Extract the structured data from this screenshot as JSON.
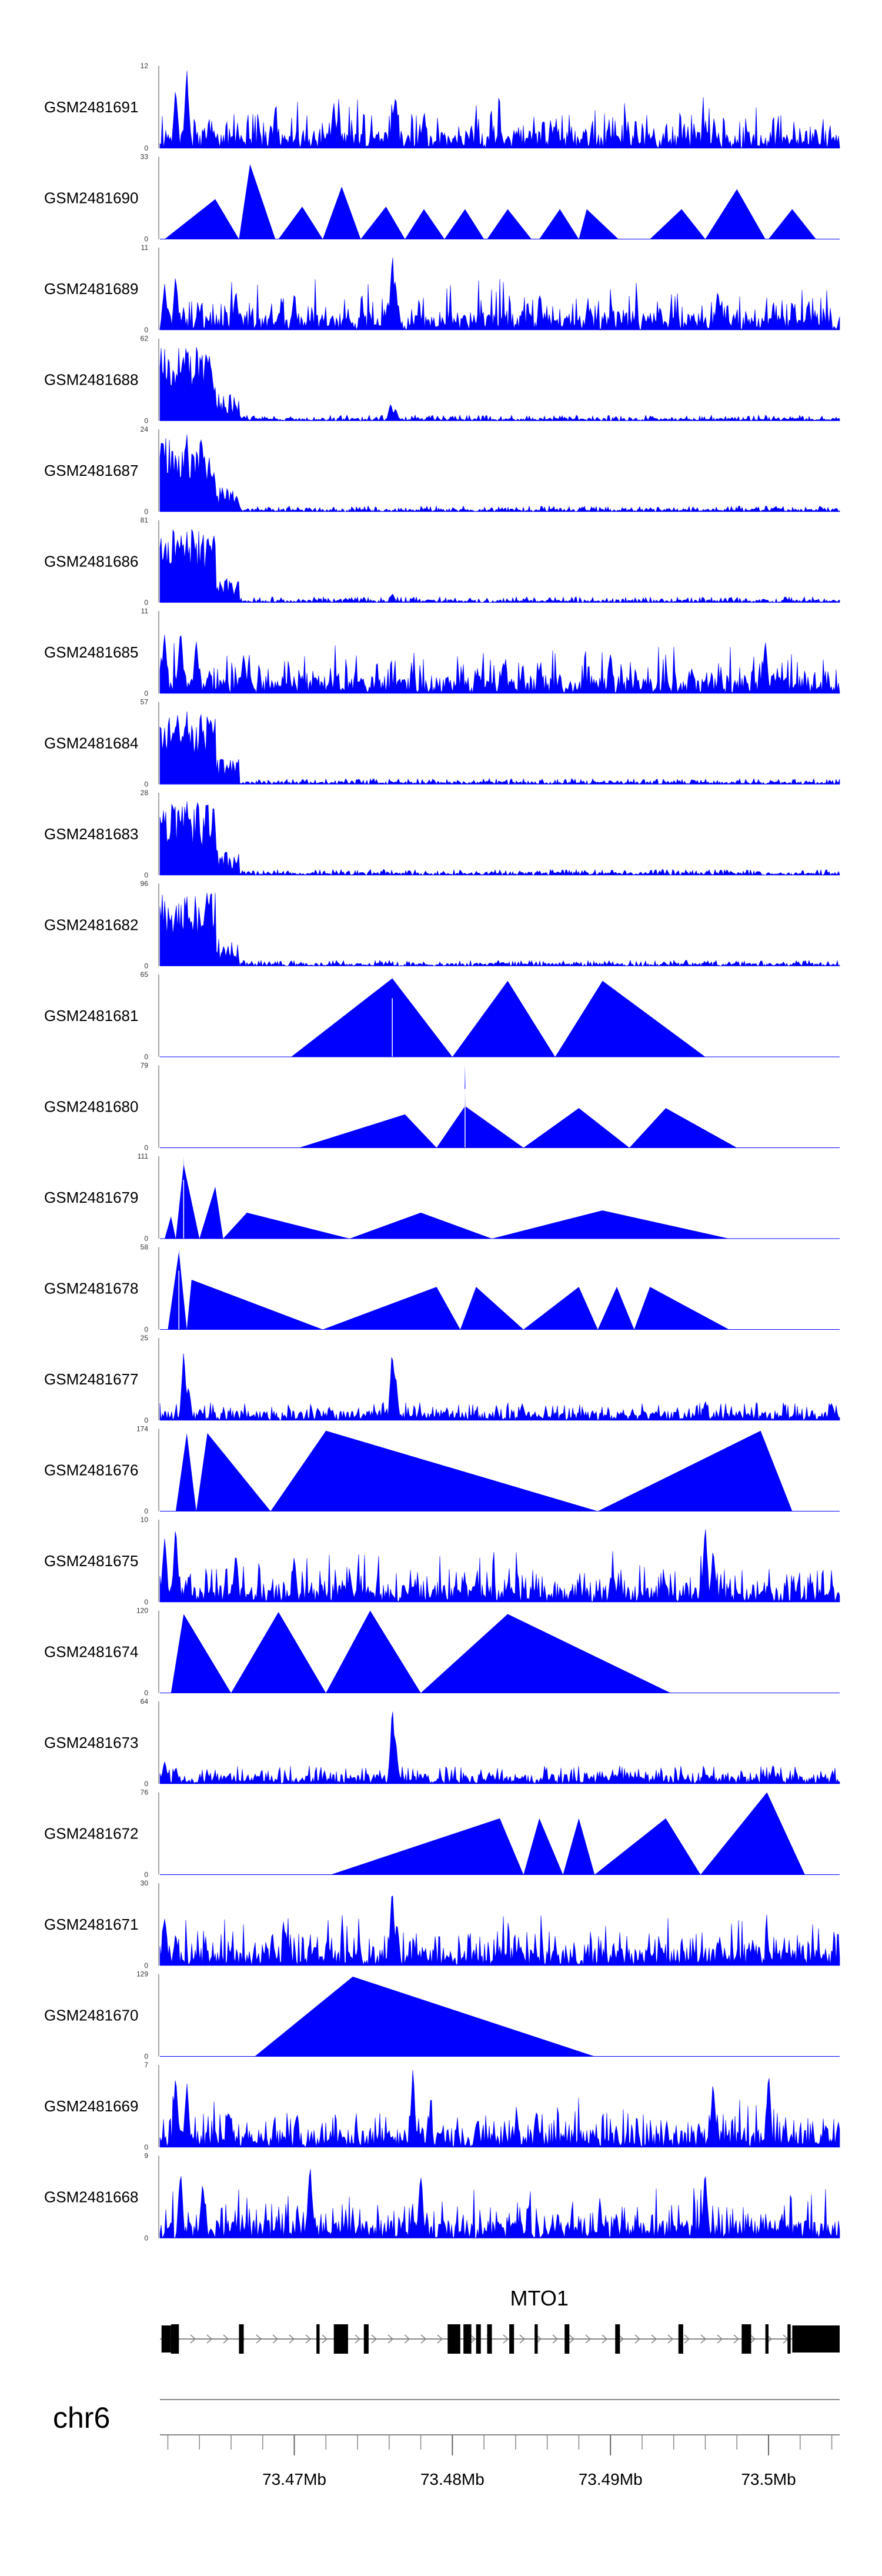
{
  "chart_data": {
    "type": "area",
    "chromosome": "chr6",
    "x_range": [
      73.4615,
      73.5045
    ],
    "x_tick_labels": [
      "73.47Mb",
      "73.48Mb",
      "73.49Mb",
      "73.5Mb"
    ],
    "x_tick_values": [
      73.47,
      73.48,
      73.49,
      73.5
    ],
    "minor_tick_step_kb": 2,
    "fill_color": "#0000ff",
    "gene": {
      "name": "MTO1",
      "strand": "+",
      "start": 73.4615,
      "end": 73.5045,
      "exons": [
        {
          "start": 73.4616,
          "end": 73.4622,
          "height": "utr"
        },
        {
          "start": 73.4622,
          "end": 73.4627,
          "height": "full"
        },
        {
          "start": 73.4665,
          "end": 73.4668,
          "height": "full"
        },
        {
          "start": 73.4714,
          "end": 73.4716,
          "height": "full"
        },
        {
          "start": 73.4725,
          "end": 73.4734,
          "height": "full"
        },
        {
          "start": 73.4744,
          "end": 73.4747,
          "height": "full"
        },
        {
          "start": 73.4797,
          "end": 73.4805,
          "height": "full"
        },
        {
          "start": 73.4807,
          "end": 73.4812,
          "height": "full"
        },
        {
          "start": 73.4815,
          "end": 73.4818,
          "height": "full"
        },
        {
          "start": 73.4822,
          "end": 73.4825,
          "height": "full"
        },
        {
          "start": 73.4836,
          "end": 73.4839,
          "height": "full"
        },
        {
          "start": 73.4852,
          "end": 73.4854,
          "height": "full"
        },
        {
          "start": 73.4871,
          "end": 73.4874,
          "height": "full"
        },
        {
          "start": 73.4903,
          "end": 73.4906,
          "height": "full"
        },
        {
          "start": 73.4943,
          "end": 73.4946,
          "height": "full"
        },
        {
          "start": 73.4983,
          "end": 73.4989,
          "height": "full"
        },
        {
          "start": 73.4998,
          "end": 73.5,
          "height": "full"
        },
        {
          "start": 73.5012,
          "end": 73.5014,
          "height": "full"
        },
        {
          "start": 73.5015,
          "end": 73.5045,
          "height": "utr"
        }
      ]
    },
    "tracks": [
      {
        "name": "GSM2481691",
        "ymax": 12,
        "kind": "dense",
        "seed": 11,
        "peaks": [
          [
            73.4625,
            10
          ],
          [
            73.4632,
            12
          ],
          [
            73.4725,
            7
          ],
          [
            73.4764,
            9
          ],
          [
            73.4782,
            6
          ]
        ]
      },
      {
        "name": "GSM2481690",
        "ymax": 33,
        "kind": "triangles",
        "seed": 12,
        "triangles": [
          [
            73.4618,
            73.465,
            73.4665,
            16
          ],
          [
            73.4665,
            73.4672,
            73.4688,
            30
          ],
          [
            73.469,
            73.4705,
            73.4718,
            13
          ],
          [
            73.4718,
            73.473,
            73.4742,
            21
          ],
          [
            73.4742,
            73.4758,
            73.477,
            13
          ],
          [
            73.477,
            73.4782,
            73.4795,
            12
          ],
          [
            73.4795,
            73.4808,
            73.482,
            12
          ],
          [
            73.4822,
            73.4835,
            73.485,
            12
          ],
          [
            73.4855,
            73.4868,
            73.488,
            12
          ],
          [
            73.488,
            73.4885,
            73.4905,
            12
          ],
          [
            73.4925,
            73.4945,
            73.496,
            12
          ],
          [
            73.496,
            73.498,
            73.4998,
            20
          ],
          [
            73.5,
            73.5015,
            73.503,
            12
          ]
        ]
      },
      {
        "name": "GSM2481689",
        "ymax": 11,
        "kind": "dense",
        "seed": 13,
        "peaks": [
          [
            73.4618,
            7
          ],
          [
            73.4625,
            8
          ],
          [
            73.4663,
            6
          ],
          [
            73.47,
            5
          ],
          [
            73.4762,
            11
          ],
          [
            73.4764,
            7
          ],
          [
            73.4968,
            6
          ]
        ]
      },
      {
        "name": "GSM2481688",
        "ymax": 62,
        "kind": "early",
        "seed": 14,
        "peaks": [
          [
            73.4618,
            45
          ],
          [
            73.4627,
            50
          ],
          [
            73.4632,
            58
          ],
          [
            73.464,
            30
          ],
          [
            73.4761,
            14
          ],
          [
            73.4764,
            10
          ]
        ]
      },
      {
        "name": "GSM2481687",
        "ymax": 24,
        "kind": "early",
        "seed": 15,
        "peaks": [
          [
            73.4618,
            18
          ],
          [
            73.4625,
            20
          ],
          [
            73.4632,
            24
          ],
          [
            73.464,
            12
          ],
          [
            73.4645,
            8
          ]
        ]
      },
      {
        "name": "GSM2481686",
        "ymax": 81,
        "kind": "early",
        "seed": 16,
        "peaks": [
          [
            73.4618,
            60
          ],
          [
            73.4625,
            50
          ],
          [
            73.4632,
            75
          ],
          [
            73.464,
            40
          ],
          [
            73.4762,
            10
          ]
        ]
      },
      {
        "name": "GSM2481685",
        "ymax": 11,
        "kind": "dense",
        "seed": 17,
        "peaks": [
          [
            73.4618,
            9
          ],
          [
            73.4628,
            10
          ],
          [
            73.4638,
            8
          ],
          [
            73.4668,
            6
          ],
          [
            73.49,
            6
          ],
          [
            73.4998,
            8
          ]
        ]
      },
      {
        "name": "GSM2481684",
        "ymax": 57,
        "kind": "early",
        "seed": 18,
        "peaks": [
          [
            73.4618,
            40
          ],
          [
            73.4625,
            48
          ],
          [
            73.4632,
            55
          ],
          [
            73.464,
            30
          ]
        ]
      },
      {
        "name": "GSM2481683",
        "ymax": 28,
        "kind": "early",
        "seed": 19,
        "peaks": [
          [
            73.4618,
            18
          ],
          [
            73.4627,
            25
          ],
          [
            73.4632,
            27
          ],
          [
            73.464,
            14
          ]
        ]
      },
      {
        "name": "GSM2481682",
        "ymax": 96,
        "kind": "early",
        "seed": 20,
        "peaks": [
          [
            73.4618,
            70
          ],
          [
            73.4625,
            80
          ],
          [
            73.4632,
            90
          ],
          [
            73.464,
            45
          ]
        ]
      },
      {
        "name": "GSM2481681",
        "ymax": 65,
        "kind": "triangles",
        "seed": 21,
        "triangles": [
          [
            73.4698,
            73.4762,
            73.48,
            62
          ],
          [
            73.48,
            73.4835,
            73.4865,
            60
          ],
          [
            73.4865,
            73.4895,
            73.496,
            60
          ]
        ],
        "spikes": [
          [
            73.4762,
            65
          ]
        ]
      },
      {
        "name": "GSM2481680",
        "ymax": 79,
        "kind": "triangles",
        "seed": 22,
        "triangles": [
          [
            73.4703,
            73.477,
            73.479,
            32
          ],
          [
            73.479,
            73.4808,
            73.4845,
            40
          ],
          [
            73.4845,
            73.488,
            73.4912,
            38
          ],
          [
            73.4912,
            73.4935,
            73.498,
            38
          ]
        ],
        "spikes": [
          [
            73.4808,
            79
          ]
        ]
      },
      {
        "name": "GSM2481679",
        "ymax": 111,
        "kind": "triangles",
        "seed": 23,
        "triangles": [
          [
            73.4618,
            73.4622,
            73.4625,
            30
          ],
          [
            73.4625,
            73.463,
            73.464,
            100
          ],
          [
            73.464,
            73.465,
            73.4655,
            70
          ],
          [
            73.4655,
            73.467,
            73.4735,
            35
          ],
          [
            73.4735,
            73.478,
            73.4825,
            35
          ],
          [
            73.4825,
            73.4895,
            73.4975,
            38
          ]
        ],
        "spikes": [
          [
            73.463,
            111
          ]
        ]
      },
      {
        "name": "GSM2481678",
        "ymax": 58,
        "kind": "triangles",
        "seed": 24,
        "triangles": [
          [
            73.462,
            73.4627,
            73.4632,
            55
          ],
          [
            73.4632,
            73.4635,
            73.4718,
            35
          ],
          [
            73.4718,
            73.479,
            73.4805,
            30
          ],
          [
            73.4805,
            73.4815,
            73.4845,
            30
          ],
          [
            73.4845,
            73.488,
            73.4892,
            30
          ],
          [
            73.4892,
            73.4904,
            73.4915,
            30
          ],
          [
            73.4915,
            73.4925,
            73.4975,
            30
          ]
        ],
        "spikes": [
          [
            73.4627,
            58
          ]
        ]
      },
      {
        "name": "GSM2481677",
        "ymax": 25,
        "kind": "sparse",
        "seed": 25,
        "peaks": [
          [
            73.463,
            22
          ],
          [
            73.4633,
            12
          ],
          [
            73.4762,
            24
          ],
          [
            73.4764,
            16
          ],
          [
            73.496,
            7
          ],
          [
            73.504,
            6
          ]
        ]
      },
      {
        "name": "GSM2481676",
        "ymax": 174,
        "kind": "triangles",
        "seed": 26,
        "triangles": [
          [
            73.4625,
            73.4632,
            73.4638,
            165
          ],
          [
            73.4638,
            73.4645,
            73.4685,
            165
          ],
          [
            73.4685,
            73.472,
            73.4892,
            170
          ],
          [
            73.4892,
            73.4995,
            73.5015,
            170
          ]
        ]
      },
      {
        "name": "GSM2481675",
        "ymax": 10,
        "kind": "dense",
        "seed": 27,
        "peaks": [
          [
            73.4618,
            9
          ],
          [
            73.4625,
            10
          ],
          [
            73.4663,
            7
          ],
          [
            73.47,
            6
          ],
          [
            73.496,
            10
          ],
          [
            73.4965,
            7
          ]
        ]
      },
      {
        "name": "GSM2481674",
        "ymax": 120,
        "kind": "triangles",
        "seed": 28,
        "triangles": [
          [
            73.4622,
            73.463,
            73.466,
            115
          ],
          [
            73.466,
            73.469,
            73.472,
            118
          ],
          [
            73.472,
            73.4748,
            73.478,
            120
          ],
          [
            73.478,
            73.4835,
            73.4938,
            115
          ]
        ]
      },
      {
        "name": "GSM2481673",
        "ymax": 64,
        "kind": "sparse",
        "seed": 29,
        "peaks": [
          [
            73.4618,
            20
          ],
          [
            73.4625,
            15
          ],
          [
            73.4762,
            64
          ],
          [
            73.4764,
            40
          ]
        ]
      },
      {
        "name": "GSM2481672",
        "ymax": 76,
        "kind": "triangles",
        "seed": 30,
        "triangles": [
          [
            73.4723,
            73.483,
            73.4845,
            52
          ],
          [
            73.4845,
            73.4855,
            73.487,
            52
          ],
          [
            73.487,
            73.488,
            73.489,
            52
          ],
          [
            73.489,
            73.4935,
            73.4957,
            52
          ],
          [
            73.4957,
            73.4999,
            73.5023,
            76
          ]
        ]
      },
      {
        "name": "GSM2481671",
        "ymax": 30,
        "kind": "dense",
        "seed": 31,
        "peaks": [
          [
            73.4618,
            20
          ],
          [
            73.4625,
            12
          ],
          [
            73.4762,
            30
          ],
          [
            73.4765,
            18
          ],
          [
            73.499,
            10
          ]
        ]
      },
      {
        "name": "GSM2481670",
        "ymax": 129,
        "kind": "triangles",
        "seed": 32,
        "triangles": [
          [
            73.4675,
            73.4737,
            73.489,
            125
          ]
        ]
      },
      {
        "name": "GSM2481669",
        "ymax": 7,
        "kind": "dense",
        "seed": 33,
        "peaks": [
          [
            73.4625,
            7
          ],
          [
            73.4632,
            6
          ],
          [
            73.4775,
            7
          ],
          [
            73.4965,
            6
          ],
          [
            73.5,
            7
          ]
        ]
      },
      {
        "name": "GSM2481668",
        "ymax": 9,
        "kind": "dense",
        "seed": 34,
        "peaks": [
          [
            73.4628,
            8
          ],
          [
            73.4642,
            7
          ],
          [
            73.471,
            9
          ],
          [
            73.478,
            8
          ],
          [
            73.496,
            8
          ]
        ]
      }
    ]
  }
}
